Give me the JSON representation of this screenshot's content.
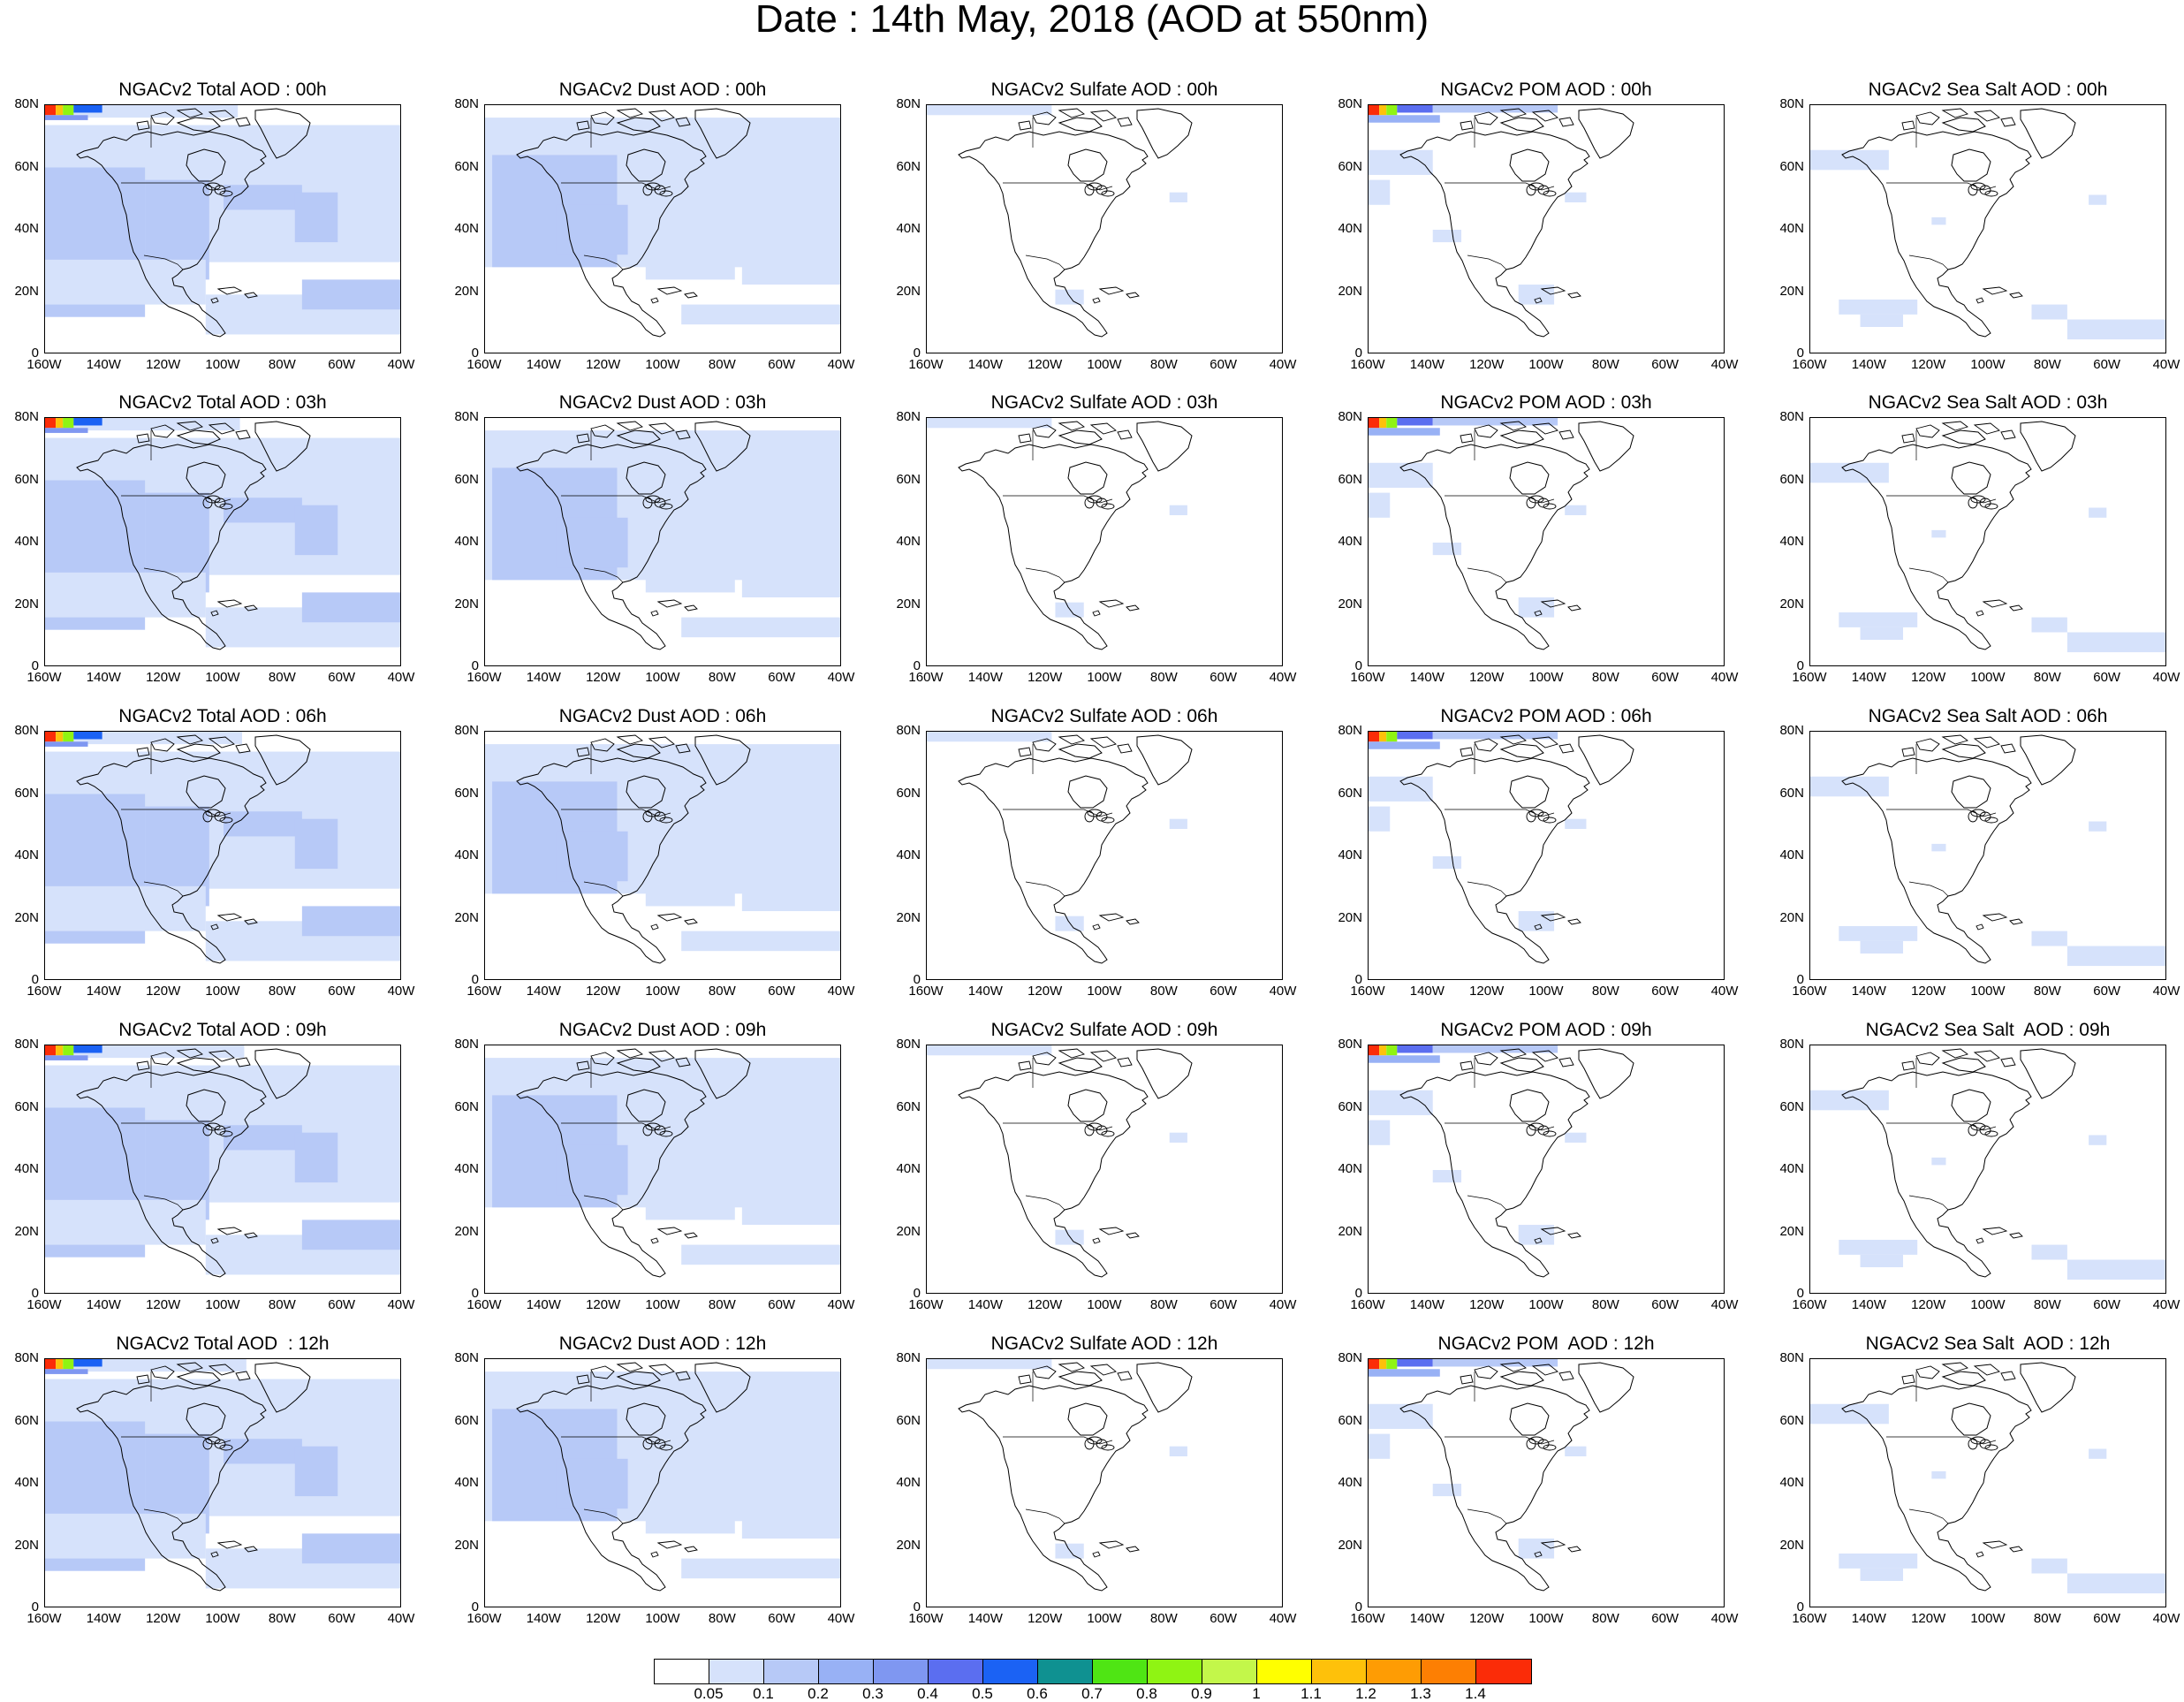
{
  "title": "Date : 14th May, 2018 (AOD at 550nm)",
  "axes": {
    "lat_labels": [
      "80N",
      "60N",
      "40N",
      "20N",
      "0"
    ],
    "lon_labels": [
      "160W",
      "140W",
      "120W",
      "100W",
      "80W",
      "60W",
      "40W"
    ]
  },
  "panel_titles": [
    [
      "NGACv2 Total AOD : 00h",
      "NGACv2 Dust AOD : 00h",
      "NGACv2 Sulfate AOD : 00h",
      "NGACv2 POM AOD : 00h",
      "NGACv2 Sea Salt AOD : 00h"
    ],
    [
      "NGACv2 Total AOD : 03h",
      "NGACv2 Dust AOD : 03h",
      "NGACv2 Sulfate AOD : 03h",
      "NGACv2 POM AOD : 03h",
      "NGACv2 Sea Salt AOD : 03h"
    ],
    [
      "NGACv2 Total AOD : 06h",
      "NGACv2 Dust AOD : 06h",
      "NGACv2 Sulfate AOD : 06h",
      "NGACv2 POM AOD : 06h",
      "NGACv2 Sea Salt AOD : 06h"
    ],
    [
      "NGACv2 Total AOD : 09h",
      "NGACv2 Dust AOD : 09h",
      "NGACv2 Sulfate AOD : 09h",
      "NGACv2 POM AOD : 09h",
      "NGACv2 Sea Salt  AOD : 09h"
    ],
    [
      "NGACv2 Total AOD  : 12h",
      "NGACv2 Dust AOD : 12h",
      "NGACv2 Sulfate AOD : 12h",
      "NGACv2 POM  AOD : 12h",
      "NGACv2 Sea Salt  AOD : 12h"
    ]
  ],
  "colorbar": {
    "labels": [
      "0.05",
      "0.1",
      "0.2",
      "0.3",
      "0.4",
      "0.5",
      "0.6",
      "0.7",
      "0.8",
      "0.9",
      "1",
      "1.1",
      "1.2",
      "1.3",
      "1.4"
    ],
    "colors": [
      "#ffffff",
      "#d6e2fb",
      "#b7c9f7",
      "#98b1f5",
      "#7f97f1",
      "#5b6ef0",
      "#1b62f4",
      "#0f9191",
      "#4fe514",
      "#8ff413",
      "#c3f74a",
      "#ffff00",
      "#fec10a",
      "#fe9c04",
      "#fd7f03",
      "#fb2c08"
    ]
  }
}
